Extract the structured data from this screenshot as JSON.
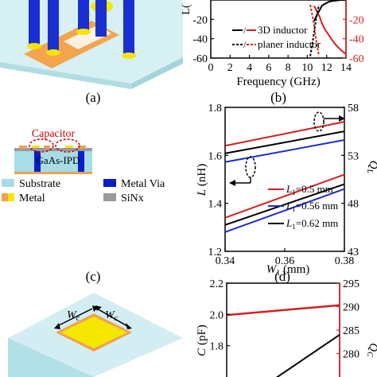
{
  "panels": {
    "a": {
      "label": "(a)"
    },
    "b": {
      "label": "(b)"
    },
    "c": {
      "label": "(c)"
    },
    "d": {
      "label": "(d)"
    }
  },
  "panel_c": {
    "capacitor_label": "Capacitor",
    "chip_label": "GaAs-IPD",
    "legend": [
      "Substrate",
      "Metal Via",
      "Metal",
      "SiNx"
    ],
    "colors": {
      "substrate": "#a6dde6",
      "via": "#0a1fc8",
      "metal_orange": "#f0a050",
      "metal_yellow": "#f5e600",
      "sinx": "#9a9a9a",
      "capacitor_outline": "#cc0000"
    }
  },
  "panel_e": {
    "wc_label_left": "W",
    "wc_label_right": "W",
    "wc_sub": "c"
  },
  "chart_data": [
    {
      "id": "b",
      "type": "line",
      "xlabel": "Frequency (GHz)",
      "ylabel_left": "L(",
      "xlim": [
        0,
        14
      ],
      "xticks": [
        "0",
        "2",
        "4",
        "6",
        "8",
        "10",
        "12",
        "14"
      ],
      "ylim": [
        -60,
        0
      ],
      "yticks": [
        "-20",
        "-40",
        "-60"
      ],
      "right_ticks": [
        "-20",
        "-40",
        "-60"
      ],
      "legend": [
        "3D inductor",
        "planer inductor"
      ],
      "series": [
        {
          "name": "3D inductor",
          "style": "solid",
          "x": [
            10.7,
            11.0,
            11.3,
            11.5,
            11.8,
            12.2,
            12.6,
            13.0,
            13.5,
            14.0
          ],
          "y_black": [
            -22,
            -15,
            -10,
            -6,
            -4,
            -2,
            -1,
            -0.5,
            0,
            0
          ],
          "y_red": [
            -6,
            -12,
            -18,
            -24,
            -30,
            -36,
            -42,
            -47,
            -52,
            -56
          ]
        },
        {
          "name": "planer inductor",
          "style": "dashed",
          "x": [
            10.3,
            10.6,
            10.9,
            11.2
          ],
          "y_black": [
            -58,
            -40,
            -20,
            -5
          ],
          "y_red": [
            -5,
            -20,
            -40,
            -58
          ]
        }
      ]
    },
    {
      "id": "d",
      "type": "line",
      "xlabel": "W",
      "xlabel_sub": "1",
      "xlabel_unit": " (mm)",
      "ylabel": "L (nH)",
      "ylabel_right": "Q",
      "ylabel_right_sub": "L",
      "xlim": [
        0.34,
        0.38
      ],
      "xticks": [
        "0.34",
        "0.36",
        "0.38"
      ],
      "ylim": [
        1.2,
        1.8
      ],
      "yticks": [
        "1.2",
        "1.4",
        "1.6",
        "1.8"
      ],
      "ylim_right": [
        43,
        58
      ],
      "yticks_right": [
        "43",
        "48",
        "53",
        "58"
      ],
      "series": [
        {
          "name": "L1=0.5 mm",
          "legend_text": "=0.5 mm",
          "color": "#d42020",
          "L": [
            1.34,
            1.52
          ],
          "Q": [
            54.0,
            56.5
          ]
        },
        {
          "name": "L1=0.56 mm",
          "legend_text": "=0.56 mm",
          "color": "#1a2fc8",
          "L": [
            1.28,
            1.46
          ],
          "Q": [
            52.3,
            54.6
          ]
        },
        {
          "name": "L1=0.62 mm",
          "legend_text": "=0.62 mm",
          "color": "#000000",
          "L": [
            1.31,
            1.48
          ],
          "Q": [
            53.2,
            55.5
          ]
        }
      ],
      "legend_prefix": "L",
      "legend_sub": "1"
    },
    {
      "id": "f",
      "type": "line",
      "ylabel": "C (pF)",
      "ylabel_right": "Q",
      "ylabel_right_sub": "C",
      "ylim": [
        1.6,
        2.2
      ],
      "yticks": [
        "2.2",
        "2.0",
        "1.8"
      ],
      "ylim_right": [
        275,
        295
      ],
      "yticks_right": [
        "295",
        "290",
        "285",
        "280"
      ],
      "series": [
        {
          "name": "Q",
          "color": "#d42020",
          "y_right": [
            288.2,
            290.3
          ]
        },
        {
          "name": "C",
          "color": "#000000",
          "y": [
            1.57,
            1.87
          ]
        }
      ]
    }
  ]
}
